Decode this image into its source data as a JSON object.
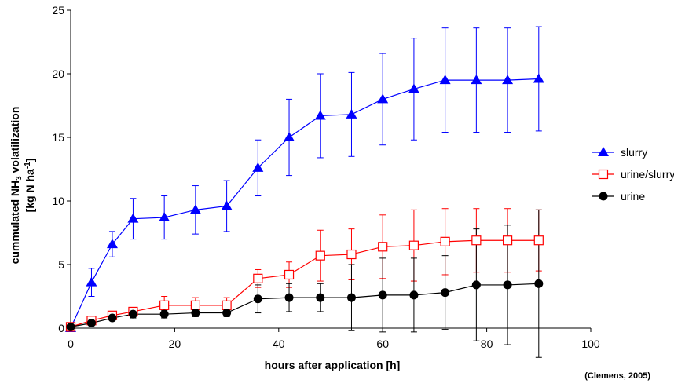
{
  "chart_data": {
    "type": "line",
    "xlabel": "hours after application [h]",
    "ylabel": {
      "line1_pre": "cummulated NH",
      "line1_sub": "3",
      "line1_post": " volatilization",
      "line2_pre": "[kg N ha",
      "line2_sup": "-1",
      "line2_post": "]"
    },
    "source": "(Clemens, 2005)",
    "xlim": [
      0,
      100
    ],
    "ylim": [
      0,
      25
    ],
    "xticks": [
      "0",
      "20",
      "40",
      "60",
      "80",
      "100"
    ],
    "yticks": [
      "0",
      "5",
      "10",
      "15",
      "20",
      "25"
    ],
    "grid": false,
    "legend_position": "right",
    "series": [
      {
        "name": "slurry",
        "color": "#0000ff",
        "marker": "triangle",
        "x": [
          0,
          4,
          8,
          12,
          18,
          24,
          30,
          36,
          42,
          48,
          54,
          60,
          66,
          72,
          78,
          84,
          90
        ],
        "y": [
          0,
          3.6,
          6.6,
          8.6,
          8.7,
          9.3,
          9.6,
          12.6,
          15.0,
          16.7,
          16.8,
          18.0,
          18.8,
          19.5,
          19.5,
          19.5,
          19.6
        ],
        "err": [
          0,
          1.1,
          1.0,
          1.6,
          1.7,
          1.9,
          2.0,
          2.2,
          3.0,
          3.3,
          3.3,
          3.6,
          4.0,
          4.1,
          4.1,
          4.1,
          4.1
        ]
      },
      {
        "name": "urine/slurry",
        "color": "#ff0000",
        "marker": "square-open",
        "x": [
          0,
          4,
          8,
          12,
          18,
          24,
          30,
          36,
          42,
          48,
          54,
          60,
          66,
          72,
          78,
          84,
          90
        ],
        "y": [
          0.1,
          0.6,
          1.0,
          1.3,
          1.8,
          1.8,
          1.8,
          3.9,
          4.2,
          5.7,
          5.8,
          6.4,
          6.5,
          6.8,
          6.9,
          6.9,
          6.9
        ],
        "err": [
          0,
          0.2,
          0.3,
          0.3,
          0.7,
          0.6,
          0.6,
          0.7,
          1.0,
          2.0,
          2.0,
          2.5,
          2.8,
          2.6,
          2.5,
          2.5,
          2.4
        ]
      },
      {
        "name": "urine",
        "color": "#000000",
        "marker": "circle",
        "x": [
          0,
          4,
          8,
          12,
          18,
          24,
          30,
          36,
          42,
          48,
          54,
          60,
          66,
          72,
          78,
          84,
          90
        ],
        "y": [
          0.1,
          0.4,
          0.8,
          1.1,
          1.1,
          1.2,
          1.2,
          2.3,
          2.4,
          2.4,
          2.4,
          2.6,
          2.6,
          2.8,
          3.4,
          3.4,
          3.5
        ],
        "err": [
          0,
          0.1,
          0.2,
          0.3,
          0.3,
          0.3,
          0.3,
          1.1,
          1.1,
          1.1,
          2.6,
          2.9,
          2.9,
          2.9,
          4.4,
          4.7,
          5.8
        ]
      }
    ]
  }
}
